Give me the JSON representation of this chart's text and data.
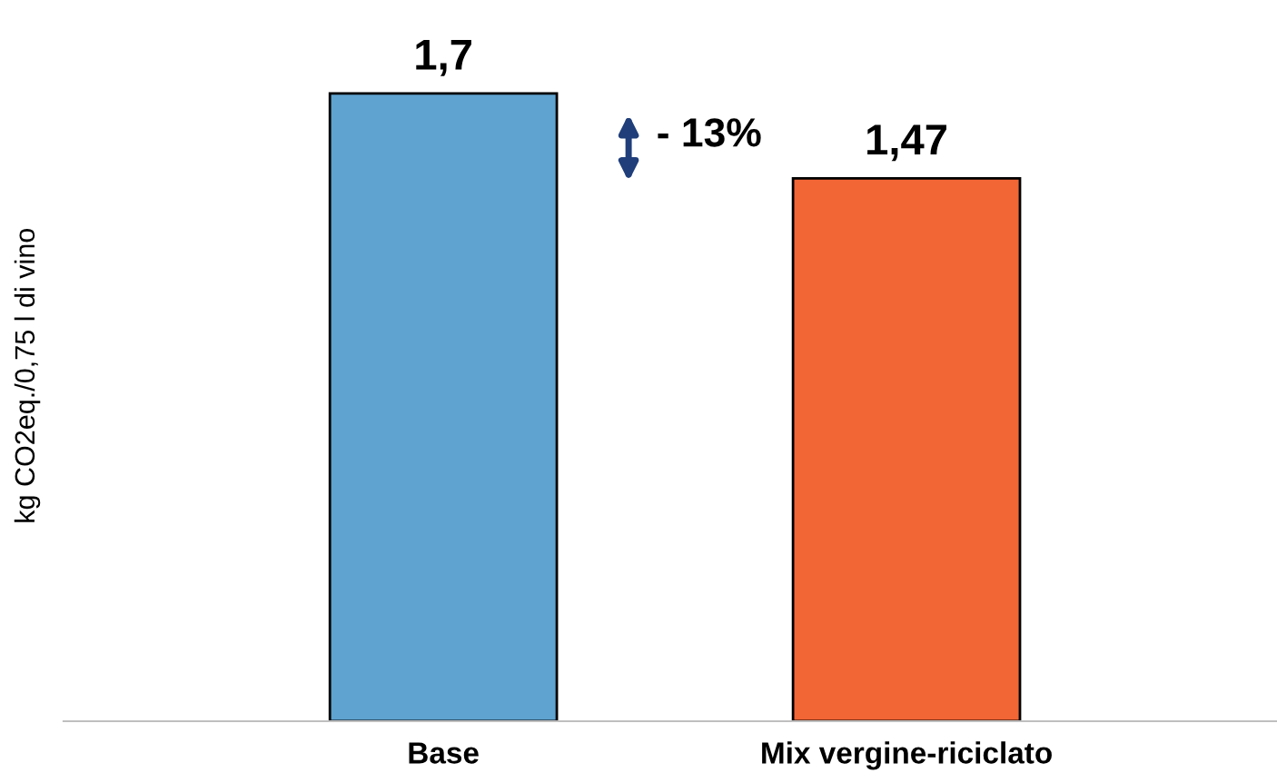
{
  "chart_data": {
    "type": "bar",
    "ylabel": "kg CO2eq./0,75 l di vino",
    "categories": [
      "Base",
      "Mix vergine-riciclato"
    ],
    "values": [
      1.7,
      1.47
    ],
    "colors": [
      "#5fa3d0",
      "#f26535"
    ],
    "value_labels": [
      "1,7",
      "1,47"
    ],
    "annotations": [
      "- 13%"
    ],
    "grid": false,
    "legend": false
  }
}
